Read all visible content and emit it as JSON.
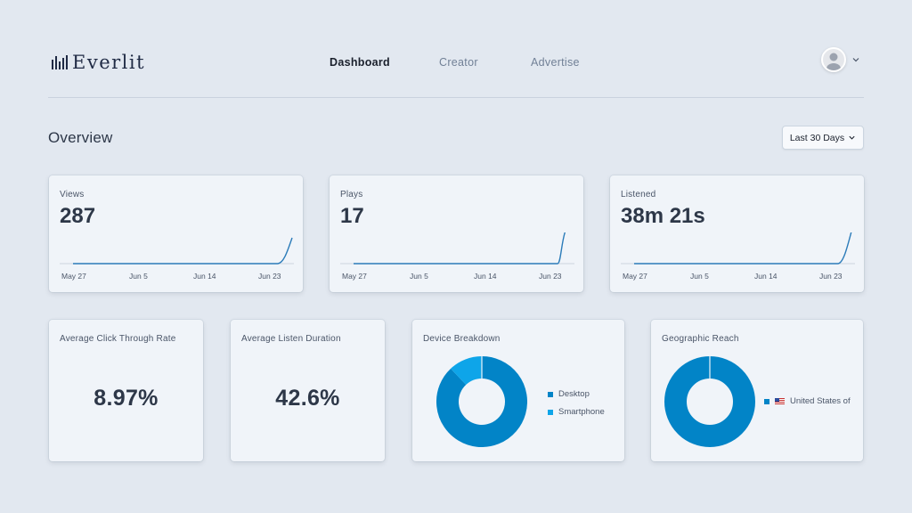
{
  "brand": {
    "name": "Everlit",
    "logo_icon": "sound-bars-icon"
  },
  "nav": {
    "items": [
      {
        "label": "Dashboard",
        "active": true
      },
      {
        "label": "Creator",
        "active": false
      },
      {
        "label": "Advertise",
        "active": false
      }
    ]
  },
  "user": {
    "avatar_icon": "user-avatar-icon",
    "menu_icon": "chevron-down-icon"
  },
  "overview": {
    "title": "Overview",
    "range_label": "Last 30 Days"
  },
  "colors": {
    "accent": "#0284c7",
    "accent_light": "#0ea5e9",
    "line": "#2b7bb9"
  },
  "stats": [
    {
      "label": "Views",
      "value": "287"
    },
    {
      "label": "Plays",
      "value": "17"
    },
    {
      "label": "Listened",
      "value": "38m 21s"
    }
  ],
  "sparkline_axis": [
    "May 27",
    "Jun 5",
    "Jun 14",
    "Jun 23"
  ],
  "metrics": [
    {
      "label": "Average Click Through Rate",
      "value": "8.97%"
    },
    {
      "label": "Average Listen Duration",
      "value": "42.6%"
    }
  ],
  "device": {
    "label": "Device Breakdown",
    "legend": [
      {
        "name": "Desktop",
        "color": "#0284c7"
      },
      {
        "name": "Smartphone",
        "color": "#0ea5e9"
      }
    ]
  },
  "geo": {
    "label": "Geographic Reach",
    "legend": [
      {
        "name": "United States of",
        "color": "#0284c7"
      }
    ]
  },
  "chart_data": [
    {
      "type": "line",
      "name": "Views",
      "x": [
        "May 27",
        "Jun 5",
        "Jun 14",
        "Jun 23"
      ]
    },
    {
      "type": "line",
      "name": "Plays",
      "x": [
        "May 27",
        "Jun 5",
        "Jun 14",
        "Jun 23"
      ]
    },
    {
      "type": "line",
      "name": "Listened",
      "x": [
        "May 27",
        "Jun 5",
        "Jun 14",
        "Jun 23"
      ]
    },
    {
      "type": "pie",
      "categories": [
        "Desktop",
        "Smartphone"
      ],
      "values": [
        88,
        12
      ]
    },
    {
      "type": "pie",
      "categories": [
        "United States of"
      ],
      "values": [
        100
      ]
    }
  ]
}
